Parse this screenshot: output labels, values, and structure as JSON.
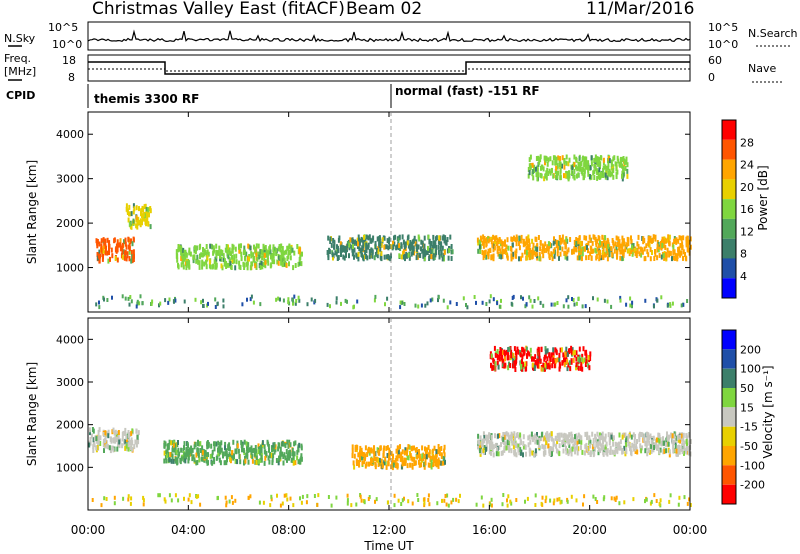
{
  "header": {
    "title": "Christmas Valley East (fitACF)",
    "beam": "Beam 02",
    "date": "11/Mar/2016"
  },
  "top_panels": {
    "nsky_label": "N.Sky",
    "nsky_ticks": [
      "10^5",
      "10^0"
    ],
    "nsearch_label": "N.Search",
    "nsearch_ticks": [
      "10^5",
      "10^0"
    ],
    "freq_label": "Freq.",
    "freq_unit": "[MHz]",
    "freq_ticks": [
      "18",
      "8"
    ],
    "nave_label": "Nave",
    "nave_ticks": [
      "60",
      "0"
    ],
    "cpid_label": "CPID",
    "cpid_segments": [
      "themis 3300 RF",
      "normal (fast) -151 RF"
    ]
  },
  "chart_data": [
    {
      "type": "heatmap",
      "id": "power",
      "ylabel": "Slant Range [km]",
      "yticks": [
        1000,
        2000,
        3000,
        4000
      ],
      "ylim": [
        0,
        4500
      ],
      "xlim": [
        0,
        24
      ],
      "colorbar": {
        "label": "Power [dB]",
        "ticks": [
          "4",
          "8",
          "12",
          "16",
          "20",
          "24",
          "28"
        ]
      },
      "features": [
        {
          "t_start": 0.3,
          "t_end": 1.8,
          "range_km": 1450,
          "value": "26"
        },
        {
          "t_start": 1.5,
          "t_end": 2.5,
          "range_km": 2200,
          "value": "18"
        },
        {
          "t_start": 3.5,
          "t_end": 8.5,
          "range_km": 1300,
          "value": "14"
        },
        {
          "t_start": 9.5,
          "t_end": 14.5,
          "range_km": 1500,
          "value": "12"
        },
        {
          "t_start": 15.5,
          "t_end": 24.0,
          "range_km": 1500,
          "value": "22"
        },
        {
          "t_start": 17.5,
          "t_end": 21.5,
          "range_km": 3300,
          "value": "14"
        }
      ]
    },
    {
      "type": "heatmap",
      "id": "velocity",
      "ylabel": "Slant Range [km]",
      "yticks": [
        1000,
        2000,
        3000,
        4000
      ],
      "ylim": [
        0,
        4500
      ],
      "xlim": [
        0,
        24
      ],
      "colorbar": {
        "label": "Velocity [m s⁻¹]",
        "ticks": [
          "200",
          "100",
          "50",
          "15",
          "-15",
          "-50",
          "-100",
          "-200"
        ]
      },
      "features": [
        {
          "t_start": 0.0,
          "t_end": 2.0,
          "range_km": 1700,
          "value": "0"
        },
        {
          "t_start": 3.0,
          "t_end": 8.5,
          "range_km": 1400,
          "value": "40"
        },
        {
          "t_start": 10.5,
          "t_end": 14.2,
          "range_km": 1300,
          "value": "-60"
        },
        {
          "t_start": 15.5,
          "t_end": 24.0,
          "range_km": 1600,
          "value": "0"
        },
        {
          "t_start": 16.0,
          "t_end": 20.0,
          "range_km": 3600,
          "value": "-150"
        }
      ]
    }
  ],
  "xaxis": {
    "ticks": [
      "00:00",
      "04:00",
      "08:00",
      "12:00",
      "16:00",
      "20:00",
      "00:00"
    ],
    "label": "Time UT"
  },
  "colors": {
    "scale": [
      "#0000ff",
      "#1f4fa8",
      "#3c7f6a",
      "#52a85a",
      "#7fd63f",
      "#e8d000",
      "#ffa500",
      "#ff5500",
      "#ff0000"
    ],
    "ground": "#c8c8c0"
  }
}
